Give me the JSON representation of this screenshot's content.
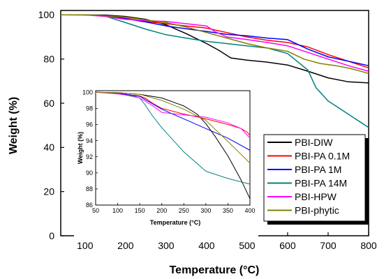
{
  "chart_data": [
    {
      "type": "line",
      "xlabel": "Temperature (°C)",
      "ylabel": "Weight (%)",
      "xlim": [
        40,
        800
      ],
      "ylim": [
        0,
        102
      ],
      "xticks": [
        100,
        200,
        300,
        400,
        500,
        600,
        700,
        800
      ],
      "yticks": [
        0,
        20,
        40,
        60,
        80,
        100
      ],
      "legend_position": "bottom-right",
      "series": [
        {
          "name": "PBI-DIW",
          "color": "#000000",
          "x": [
            40,
            150,
            200,
            250,
            300,
            350,
            400,
            430,
            460,
            500,
            550,
            600,
            650,
            700,
            750,
            800
          ],
          "y": [
            100,
            99.9,
            99.3,
            98,
            95.5,
            91.5,
            87,
            84,
            80.5,
            79.5,
            78.6,
            77.3,
            74.5,
            71.5,
            69.7,
            69.2
          ]
        },
        {
          "name": "PBI-PA 0.1M",
          "color": "#ff0000",
          "x": [
            40,
            100,
            150,
            200,
            250,
            300,
            350,
            400,
            450,
            500,
            550,
            600,
            650,
            700,
            750,
            800
          ],
          "y": [
            100,
            100,
            99.5,
            98.5,
            97,
            96,
            95,
            94,
            92,
            90,
            88.5,
            87.5,
            85.5,
            82,
            79,
            76
          ]
        },
        {
          "name": "PBI-PA 1M",
          "color": "#0000ff",
          "x": [
            40,
            100,
            150,
            200,
            250,
            300,
            350,
            400,
            450,
            500,
            550,
            600,
            650,
            700,
            750,
            800
          ],
          "y": [
            100,
            100,
            99.5,
            98.3,
            96.8,
            95,
            93.7,
            92.5,
            91.2,
            90.5,
            89.5,
            88.8,
            84.5,
            81,
            79,
            77
          ]
        },
        {
          "name": "PBI-PA 14M",
          "color": "#008080",
          "x": [
            40,
            100,
            150,
            200,
            250,
            300,
            350,
            400,
            450,
            500,
            550,
            600,
            620,
            650,
            670,
            700,
            750,
            800
          ],
          "y": [
            100,
            100,
            99.4,
            96.5,
            93.5,
            91,
            89.5,
            88,
            87,
            86,
            85,
            82.5,
            79.5,
            75,
            67,
            61,
            55,
            49
          ]
        },
        {
          "name": "PBI-HPW",
          "color": "#ff00ff",
          "x": [
            40,
            100,
            150,
            200,
            250,
            300,
            350,
            400,
            420,
            450,
            500,
            550,
            600,
            650,
            700,
            750,
            800
          ],
          "y": [
            100,
            100,
            99.3,
            98,
            97.4,
            97,
            96,
            95,
            92.5,
            90,
            88.8,
            87.5,
            86,
            83,
            80,
            77,
            74.5
          ]
        },
        {
          "name": "PBI-phytic",
          "color": "#808000",
          "x": [
            40,
            100,
            150,
            200,
            250,
            300,
            350,
            400,
            450,
            500,
            550,
            600,
            640,
            680,
            720,
            760,
            800
          ],
          "y": [
            100,
            100,
            99.6,
            99,
            97.7,
            96.5,
            94.5,
            92,
            89.5,
            87,
            85,
            83.5,
            80,
            78,
            77,
            75.5,
            73.5
          ]
        }
      ]
    },
    {
      "type": "line",
      "xlabel": "Temperature (°C)",
      "ylabel": "Weight (%)",
      "xlim": [
        50,
        400
      ],
      "ylim": [
        86,
        100.2
      ],
      "xticks": [
        50,
        100,
        150,
        200,
        250,
        300,
        350,
        400
      ],
      "yticks": [
        86,
        88,
        90,
        92,
        94,
        96,
        98,
        100
      ],
      "series": [
        {
          "name": "PBI-DIW",
          "color": "#000000",
          "x": [
            50,
            100,
            150,
            200,
            250,
            280,
            300,
            320,
            350,
            380,
            400
          ],
          "y": [
            100,
            99.95,
            99.75,
            99.3,
            98.3,
            97.3,
            96.1,
            94.6,
            92.1,
            89.1,
            86.8
          ]
        },
        {
          "name": "PBI-PA 0.1M",
          "color": "#ff0000",
          "x": [
            50,
            100,
            150,
            165,
            180,
            200,
            250,
            300,
            350,
            380,
            395,
            400
          ],
          "y": [
            100,
            99.85,
            99.55,
            99.2,
            98.6,
            98.0,
            97.3,
            96.7,
            96.0,
            95.5,
            95.0,
            94.6
          ]
        },
        {
          "name": "PBI-PA 1M",
          "color": "#0000ff",
          "x": [
            50,
            100,
            150,
            200,
            250,
            300,
            350,
            400
          ],
          "y": [
            100,
            99.9,
            99.5,
            97.9,
            96.7,
            95.5,
            94.3,
            92.8
          ]
        },
        {
          "name": "PBI-PA 14M",
          "color": "#008080",
          "x": [
            50,
            100,
            150,
            160,
            180,
            200,
            250,
            300,
            350,
            400
          ],
          "y": [
            100,
            99.85,
            99.3,
            98.6,
            97.0,
            95.6,
            92.6,
            90.2,
            89.3,
            88.6
          ]
        },
        {
          "name": "PBI-HPW",
          "color": "#ff00ff",
          "x": [
            50,
            100,
            140,
            160,
            180,
            200,
            250,
            300,
            350,
            380,
            400
          ],
          "y": [
            100,
            99.8,
            99.5,
            99.0,
            98.3,
            97.5,
            97.2,
            96.9,
            96.2,
            95.5,
            94.3
          ]
        },
        {
          "name": "PBI-phytic",
          "color": "#808000",
          "x": [
            50,
            100,
            150,
            200,
            250,
            300,
            350,
            400
          ],
          "y": [
            100,
            99.95,
            99.75,
            99.0,
            97.9,
            96.5,
            93.9,
            91.2
          ]
        }
      ]
    }
  ]
}
